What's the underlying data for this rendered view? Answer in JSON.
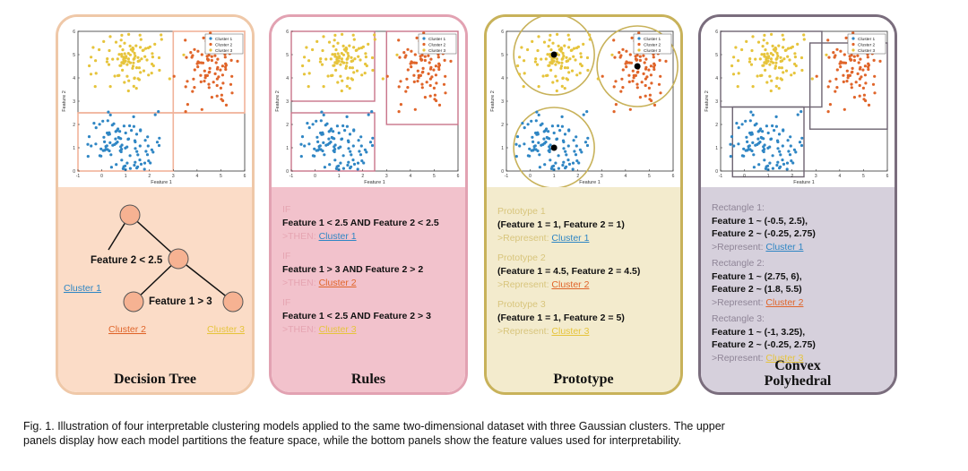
{
  "colors": {
    "cluster1": "#2f86c4",
    "cluster2": "#e0652a",
    "cluster3": "#e6c43c",
    "dt_border": "#efc8a8",
    "dt_bg": "#fbdcc7",
    "rules_border": "#e2a2b2",
    "rules_bg": "#f2c2cc",
    "proto_border": "#c8b25a",
    "proto_bg": "#f3ebcd",
    "convex_border": "#7a6d7d",
    "convex_bg": "#d6d0dc"
  },
  "plot_labels": {
    "xlabel": "Feature 1",
    "ylabel": "Feature 2",
    "xticks": [
      "-1",
      "0",
      "1",
      "2",
      "3",
      "4",
      "5",
      "6"
    ],
    "yticks": [
      "0",
      "1",
      "2",
      "3",
      "4",
      "5",
      "6"
    ],
    "legend": [
      "Cluster 1",
      "Cluster 2",
      "Cluster 3"
    ]
  },
  "decision_tree": {
    "title": "Decision Tree",
    "split1": "Feature 2 < 2.5",
    "split2": "Feature 1 > 3",
    "leaf1": "Cluster 1",
    "leaf2": "Cluster 2",
    "leaf3": "Cluster 3"
  },
  "rules": {
    "title": "Rules",
    "items": [
      {
        "if": "IF",
        "cond": "Feature 1 < 2.5 AND Feature 2 < 2.5",
        "then": ">THEN: ",
        "cluster": "Cluster 1"
      },
      {
        "if": "IF",
        "cond": "Feature 1 > 3 AND Feature 2 > 2",
        "then": ">THEN: ",
        "cluster": "Cluster 2"
      },
      {
        "if": "IF",
        "cond": "Feature 1 < 2.5 AND Feature 2 > 3",
        "then": ">THEN: ",
        "cluster": "Cluster 3"
      }
    ]
  },
  "prototype": {
    "title": "Prototype",
    "items": [
      {
        "name": "Prototype 1",
        "cond": "(Feature 1 = 1, Feature 2 = 1)",
        "rep": ">Represent: ",
        "cluster": "Cluster 1"
      },
      {
        "name": "Prototype 2",
        "cond": "(Feature 1 = 4.5, Feature 2 = 4.5)",
        "rep": ">Represent: ",
        "cluster": "Cluster 2"
      },
      {
        "name": "Prototype 3",
        "cond": "(Feature 1 = 1, Feature 2 = 5)",
        "rep": ">Represent: ",
        "cluster": "Cluster 3"
      }
    ]
  },
  "convex": {
    "title_line1": "Convex",
    "title_line2": "Polyhedral",
    "items": [
      {
        "name": "Rectangle 1:",
        "f1": "Feature 1 ~ (-0.5, 2.5),",
        "f2": "Feature 2 ~ (-0.25, 2.75)",
        "rep": ">Represent: ",
        "cluster": "Cluster 1"
      },
      {
        "name": "Rectangle 2:",
        "f1": "Feature 1 ~ (2.75, 6),",
        "f2": "Feature 2 ~ (1.8, 5.5)",
        "rep": ">Represent: ",
        "cluster": "Cluster 2"
      },
      {
        "name": "Rectangle 3:",
        "f1": "Feature 1 ~ (-1, 3.25),",
        "f2": "Feature 2 ~ (-0.25, 2.75)",
        "rep": ">Represent: ",
        "cluster": "Cluster 3"
      }
    ]
  },
  "caption": {
    "line1": "Fig. 1.  Illustration of four interpretable clustering models applied to the same two-dimensional dataset with three Gaussian clusters. The upper",
    "line2": "panels display how each model partitions the feature space, while the bottom panels show the feature values used for interpretability."
  }
}
